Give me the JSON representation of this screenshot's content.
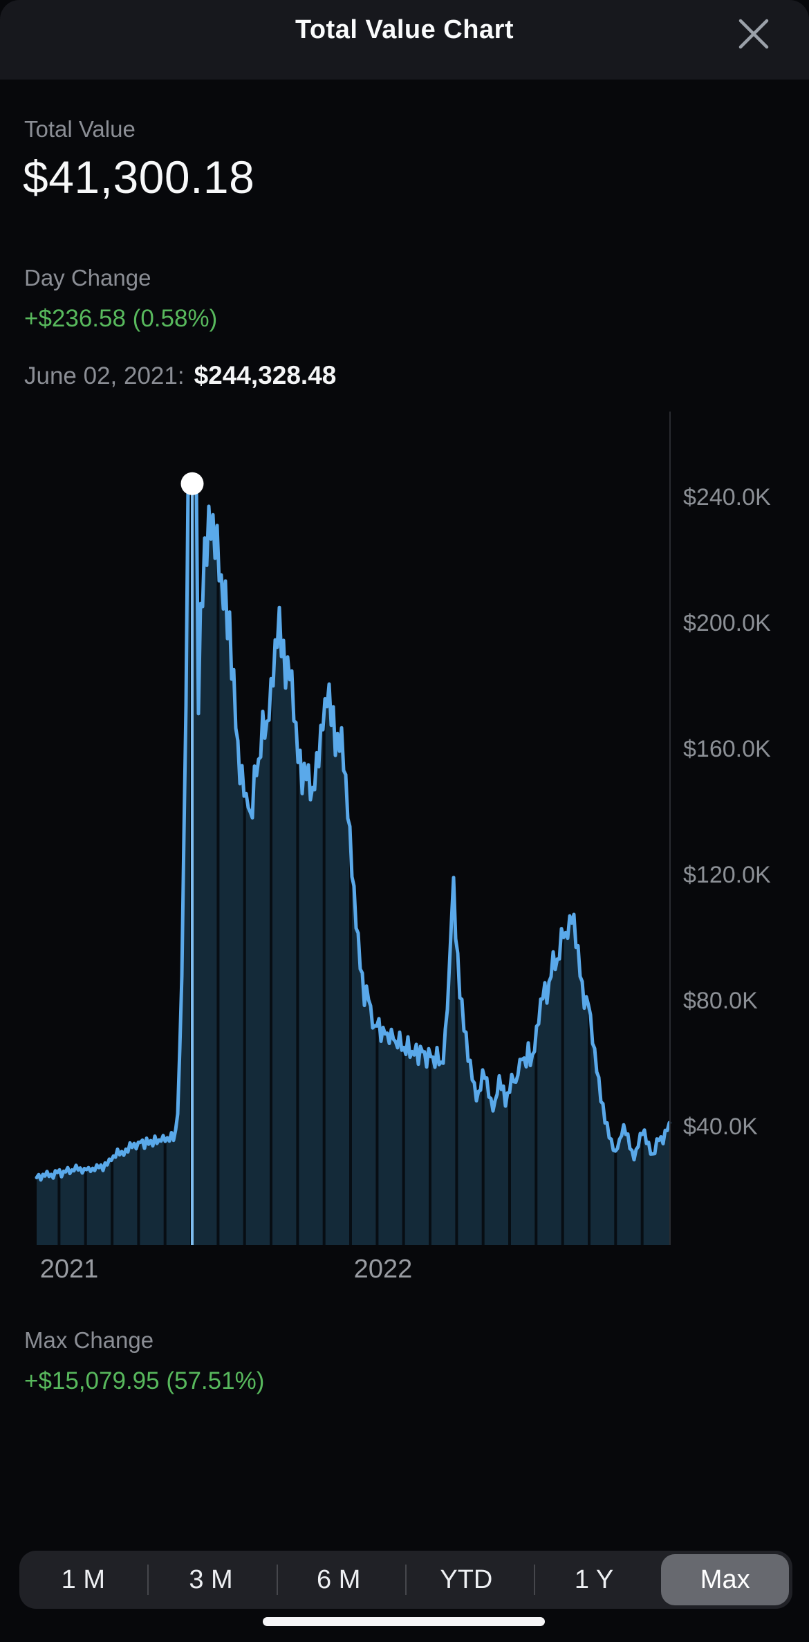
{
  "header": {
    "title": "Total Value Chart",
    "close_icon": "x-close"
  },
  "summary": {
    "total_value_label": "Total Value",
    "total_value": "$41,300.18",
    "day_change_label": "Day Change",
    "day_change_value": "+$236.58 (0.58%)",
    "selected_date_label": "June 02, 2021:",
    "selected_value": "$244,328.48"
  },
  "max_change": {
    "label": "Max Change",
    "value": "+$15,079.95 (57.51%)"
  },
  "range_selector": {
    "options": [
      {
        "id": "1m",
        "label": "1 M"
      },
      {
        "id": "3m",
        "label": "3 M"
      },
      {
        "id": "6m",
        "label": "6 M"
      },
      {
        "id": "ytd",
        "label": "YTD"
      },
      {
        "id": "1y",
        "label": "1 Y"
      },
      {
        "id": "max",
        "label": "Max"
      }
    ],
    "selected": "max"
  },
  "colors": {
    "line_blue": "#5aa9ea",
    "area_fill": "#142a39",
    "gridline": "#070d13",
    "crosshair": "#7fbcef",
    "marker_dot": "#ffffff",
    "axis_line": "#292b30",
    "positive_green": "#58b95d",
    "label_gray": "#8b8e95",
    "header_bg": "#17181d",
    "page_bg": "#07080b",
    "selector_bg": "#202126",
    "selector_selected_bg": "#67696f"
  },
  "chart_data": {
    "type": "area",
    "title": "Total Value Chart",
    "unit": "thousand USD",
    "y_axis": {
      "ticks": [
        {
          "label": "$240.0K",
          "value": 240
        },
        {
          "label": "$200.0K",
          "value": 200
        },
        {
          "label": "$160.0K",
          "value": 160
        },
        {
          "label": "$120.0K",
          "value": 120
        },
        {
          "label": "$80.0K",
          "value": 80
        },
        {
          "label": "$40.0K",
          "value": 40
        }
      ]
    },
    "x_axis": {
      "ticks": [
        {
          "label": "2021",
          "f": 0.0514
        },
        {
          "label": "2022",
          "f": 0.5475
        }
      ]
    },
    "selected_point": {
      "f": 0.2459,
      "value": 244.32848,
      "date": "June 02, 2021",
      "display": "$244,328.48"
    },
    "series": [
      {
        "name": "Total Value",
        "points": [
          [
            0.0,
            24.5
          ],
          [
            0.008,
            23.8
          ],
          [
            0.016,
            25.2
          ],
          [
            0.024,
            24.0
          ],
          [
            0.032,
            26.0
          ],
          [
            0.04,
            24.8
          ],
          [
            0.048,
            26.5
          ],
          [
            0.056,
            25.5
          ],
          [
            0.064,
            27.5
          ],
          [
            0.072,
            26.0
          ],
          [
            0.08,
            27.0
          ],
          [
            0.088,
            25.8
          ],
          [
            0.096,
            27.8
          ],
          [
            0.104,
            26.5
          ],
          [
            0.112,
            28.5
          ],
          [
            0.12,
            30.0
          ],
          [
            0.128,
            32.0
          ],
          [
            0.136,
            31.0
          ],
          [
            0.144,
            33.0
          ],
          [
            0.152,
            34.5
          ],
          [
            0.158,
            33.5
          ],
          [
            0.164,
            35.5
          ],
          [
            0.17,
            34.0
          ],
          [
            0.176,
            36.0
          ],
          [
            0.182,
            34.8
          ],
          [
            0.188,
            36.5
          ],
          [
            0.194,
            35.2
          ],
          [
            0.2,
            36.8
          ],
          [
            0.206,
            35.5
          ],
          [
            0.212,
            37.0
          ],
          [
            0.218,
            35.8
          ],
          [
            0.2215,
            40.0
          ],
          [
            0.2245,
            52.0
          ],
          [
            0.2275,
            72.0
          ],
          [
            0.2305,
            100.0
          ],
          [
            0.2335,
            140.0
          ],
          [
            0.2365,
            185.0
          ],
          [
            0.2395,
            222.0
          ],
          [
            0.2425,
            238.0
          ],
          [
            0.2459,
            244.33
          ],
          [
            0.2482,
            215.0
          ],
          [
            0.2505,
            190.0
          ],
          [
            0.2525,
            123.0
          ],
          [
            0.255,
            170.0
          ],
          [
            0.258,
            200.0
          ],
          [
            0.2615,
            212.0
          ],
          [
            0.2655,
            221.0
          ],
          [
            0.2695,
            228.0
          ],
          [
            0.274,
            234.5
          ],
          [
            0.2785,
            230.0
          ],
          [
            0.283,
            226.0
          ],
          [
            0.287,
            227.0
          ],
          [
            0.2905,
            212.0
          ],
          [
            0.2945,
            210.0
          ],
          [
            0.2985,
            206.0
          ],
          [
            0.3025,
            200.0
          ],
          [
            0.3065,
            193.0
          ],
          [
            0.3105,
            184.0
          ],
          [
            0.3145,
            172.0
          ],
          [
            0.3185,
            158.0
          ],
          [
            0.3225,
            148.0
          ],
          [
            0.3265,
            152.0
          ],
          [
            0.3305,
            140.0
          ],
          [
            0.3345,
            147.0
          ],
          [
            0.3385,
            136.0
          ],
          [
            0.3425,
            145.0
          ],
          [
            0.3465,
            155.0
          ],
          [
            0.3505,
            150.0
          ],
          [
            0.3545,
            161.0
          ],
          [
            0.359,
            170.0
          ],
          [
            0.364,
            166.0
          ],
          [
            0.369,
            177.0
          ],
          [
            0.374,
            186.0
          ],
          [
            0.379,
            194.0
          ],
          [
            0.3847,
            200.5
          ],
          [
            0.39,
            191.0
          ],
          [
            0.3945,
            184.0
          ],
          [
            0.399,
            186.5
          ],
          [
            0.4035,
            178.0
          ],
          [
            0.408,
            170.0
          ],
          [
            0.4125,
            162.0
          ],
          [
            0.417,
            154.0
          ],
          [
            0.422,
            149.0
          ],
          [
            0.427,
            153.5
          ],
          [
            0.432,
            148.0
          ],
          [
            0.437,
            145.0
          ],
          [
            0.442,
            153.0
          ],
          [
            0.4475,
            162.0
          ],
          [
            0.453,
            170.0
          ],
          [
            0.4585,
            175.0
          ],
          [
            0.4634,
            178.5
          ],
          [
            0.468,
            170.0
          ],
          [
            0.4725,
            164.0
          ],
          [
            0.4775,
            161.5
          ],
          [
            0.4825,
            162.5
          ],
          [
            0.487,
            152.0
          ],
          [
            0.4915,
            142.0
          ],
          [
            0.496,
            130.0
          ],
          [
            0.5005,
            117.0
          ],
          [
            0.505,
            105.0
          ],
          [
            0.5095,
            95.0
          ],
          [
            0.514,
            88.0
          ],
          [
            0.5185,
            80.0
          ],
          [
            0.5235,
            84.5
          ],
          [
            0.5285,
            76.0
          ],
          [
            0.5335,
            70.0
          ],
          [
            0.539,
            74.5
          ],
          [
            0.5445,
            68.0
          ],
          [
            0.55,
            72.5
          ],
          [
            0.556,
            66.5
          ],
          [
            0.562,
            70.5
          ],
          [
            0.568,
            64.5
          ],
          [
            0.574,
            68.5
          ],
          [
            0.58,
            63.0
          ],
          [
            0.586,
            67.0
          ],
          [
            0.592,
            62.0
          ],
          [
            0.598,
            66.0
          ],
          [
            0.604,
            61.5
          ],
          [
            0.61,
            65.5
          ],
          [
            0.616,
            60.5
          ],
          [
            0.622,
            64.0
          ],
          [
            0.628,
            59.5
          ],
          [
            0.634,
            63.5
          ],
          [
            0.639,
            58.0
          ],
          [
            0.644,
            64.0
          ],
          [
            0.648,
            74.0
          ],
          [
            0.652,
            88.0
          ],
          [
            0.655,
            103.0
          ],
          [
            0.658,
            120.5
          ],
          [
            0.661,
            108.0
          ],
          [
            0.664,
            96.0
          ],
          [
            0.668,
            86.0
          ],
          [
            0.672,
            78.0
          ],
          [
            0.677,
            70.0
          ],
          [
            0.682,
            63.0
          ],
          [
            0.687,
            57.5
          ],
          [
            0.692,
            52.5
          ],
          [
            0.697,
            48.5
          ],
          [
            0.702,
            53.0
          ],
          [
            0.707,
            58.0
          ],
          [
            0.712,
            54.0
          ],
          [
            0.717,
            49.0
          ],
          [
            0.722,
            45.5
          ],
          [
            0.727,
            50.0
          ],
          [
            0.732,
            55.5
          ],
          [
            0.737,
            51.5
          ],
          [
            0.742,
            47.5
          ],
          [
            0.747,
            52.0
          ],
          [
            0.752,
            57.0
          ],
          [
            0.757,
            53.0
          ],
          [
            0.762,
            58.5
          ],
          [
            0.767,
            63.0
          ],
          [
            0.772,
            59.0
          ],
          [
            0.777,
            64.5
          ],
          [
            0.782,
            60.0
          ],
          [
            0.787,
            66.0
          ],
          [
            0.792,
            72.5
          ],
          [
            0.797,
            79.0
          ],
          [
            0.802,
            85.0
          ],
          [
            0.807,
            80.5
          ],
          [
            0.812,
            87.5
          ],
          [
            0.817,
            94.0
          ],
          [
            0.822,
            89.5
          ],
          [
            0.827,
            97.0
          ],
          [
            0.832,
            103.0
          ],
          [
            0.838,
            99.0
          ],
          [
            0.843,
            106.0
          ],
          [
            0.847,
            110.0
          ],
          [
            0.851,
            103.0
          ],
          [
            0.855,
            96.5
          ],
          [
            0.859,
            90.0
          ],
          [
            0.863,
            84.0
          ],
          [
            0.867,
            78.5
          ],
          [
            0.871,
            82.5
          ],
          [
            0.875,
            75.0
          ],
          [
            0.879,
            68.0
          ],
          [
            0.883,
            61.5
          ],
          [
            0.887,
            55.5
          ],
          [
            0.891,
            50.5
          ],
          [
            0.895,
            46.0
          ],
          [
            0.899,
            42.0
          ],
          [
            0.904,
            38.5
          ],
          [
            0.909,
            34.5
          ],
          [
            0.914,
            31.5
          ],
          [
            0.919,
            34.0
          ],
          [
            0.924,
            37.5
          ],
          [
            0.929,
            40.0
          ],
          [
            0.934,
            37.0
          ],
          [
            0.939,
            33.5
          ],
          [
            0.944,
            30.0
          ],
          [
            0.949,
            33.0
          ],
          [
            0.954,
            36.5
          ],
          [
            0.959,
            39.5
          ],
          [
            0.964,
            36.0
          ],
          [
            0.969,
            32.5
          ],
          [
            0.974,
            30.5
          ],
          [
            0.979,
            34.0
          ],
          [
            0.984,
            37.0
          ],
          [
            0.989,
            35.0
          ],
          [
            0.994,
            38.5
          ],
          [
            1.0,
            41.3
          ]
        ]
      }
    ]
  }
}
